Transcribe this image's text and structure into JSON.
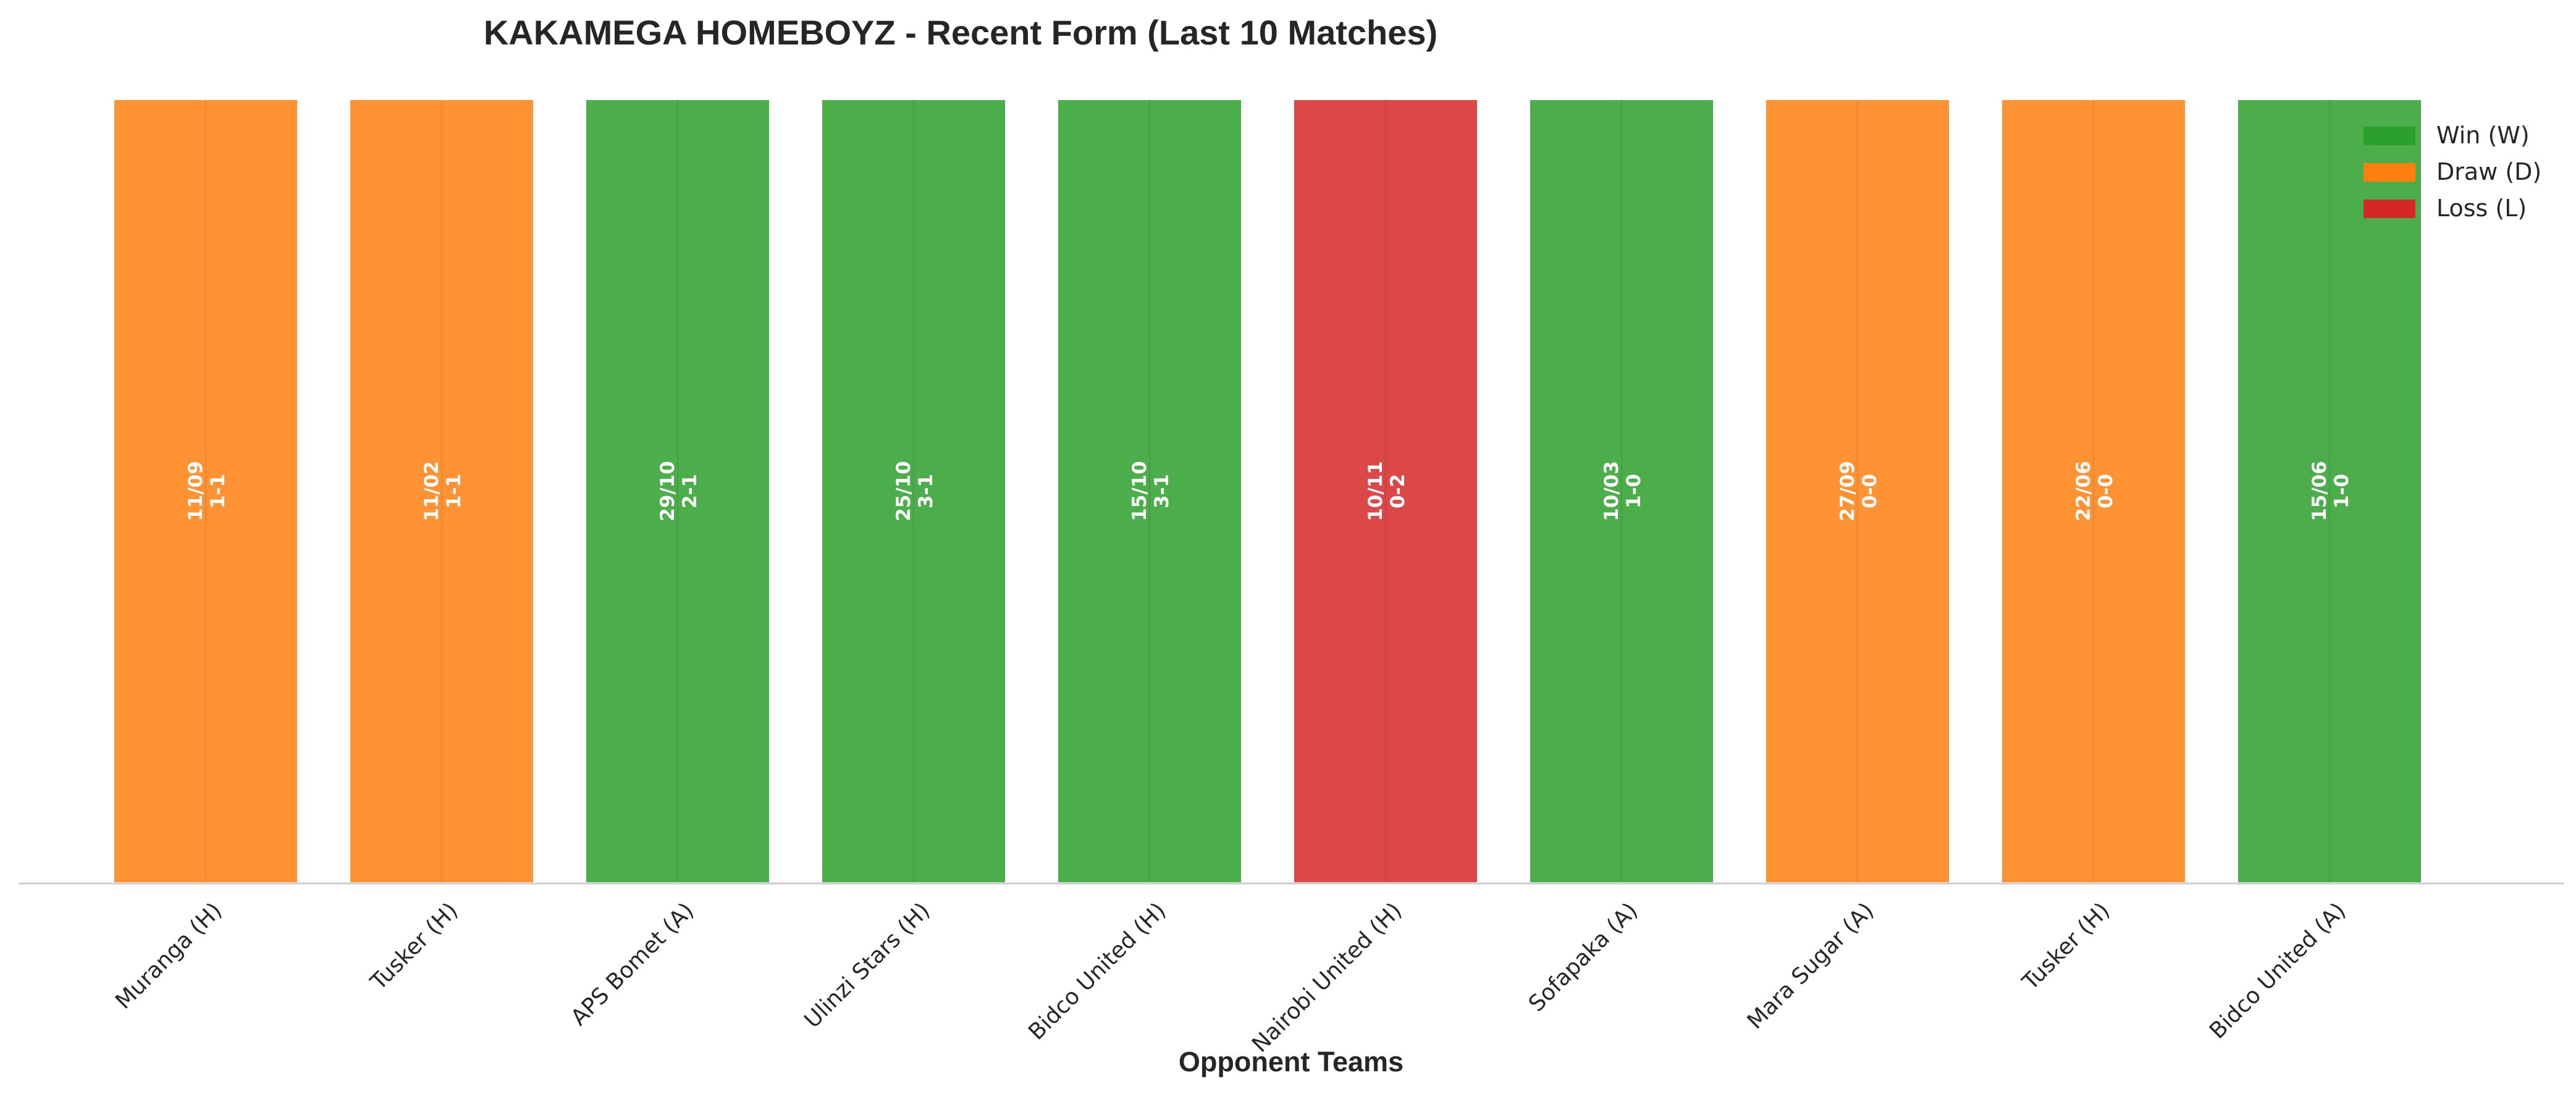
{
  "chart_data": {
    "type": "bar",
    "title": "KAKAMEGA HOMEBOYZ - Recent Form (Last 10 Matches)",
    "xlabel": "Opponent Teams",
    "ylabel": "",
    "ylim": [
      0,
      1
    ],
    "grid": false,
    "legend_position": "top-right",
    "categories": [
      "Muranga (H)",
      "Tusker (H)",
      "APS Bomet (A)",
      "Ulinzi Stars (H)",
      "Bidco United (H)",
      "Nairobi United (H)",
      "Sofapaka (A)",
      "Mara Sugar (A)",
      "Tusker (H)",
      "Bidco United (A)"
    ],
    "values": [
      1,
      1,
      1,
      1,
      1,
      1,
      1,
      1,
      1,
      1
    ],
    "results": [
      "D",
      "D",
      "W",
      "W",
      "W",
      "L",
      "W",
      "D",
      "D",
      "W"
    ],
    "dates": [
      "11/09",
      "11/02",
      "29/10",
      "25/10",
      "15/10",
      "10/11",
      "10/03",
      "27/09",
      "22/06",
      "15/06"
    ],
    "scores": [
      "1-1",
      "1-1",
      "2-1",
      "3-1",
      "3-1",
      "0-2",
      "1-0",
      "0-0",
      "0-0",
      "1-0"
    ],
    "colors": {
      "W": "#2ca02c",
      "D": "#ff7f0e",
      "L": "#d62728"
    },
    "legend": [
      {
        "key": "W",
        "label": "Win (W)"
      },
      {
        "key": "D",
        "label": "Draw (D)"
      },
      {
        "key": "L",
        "label": "Loss (L)"
      }
    ]
  }
}
